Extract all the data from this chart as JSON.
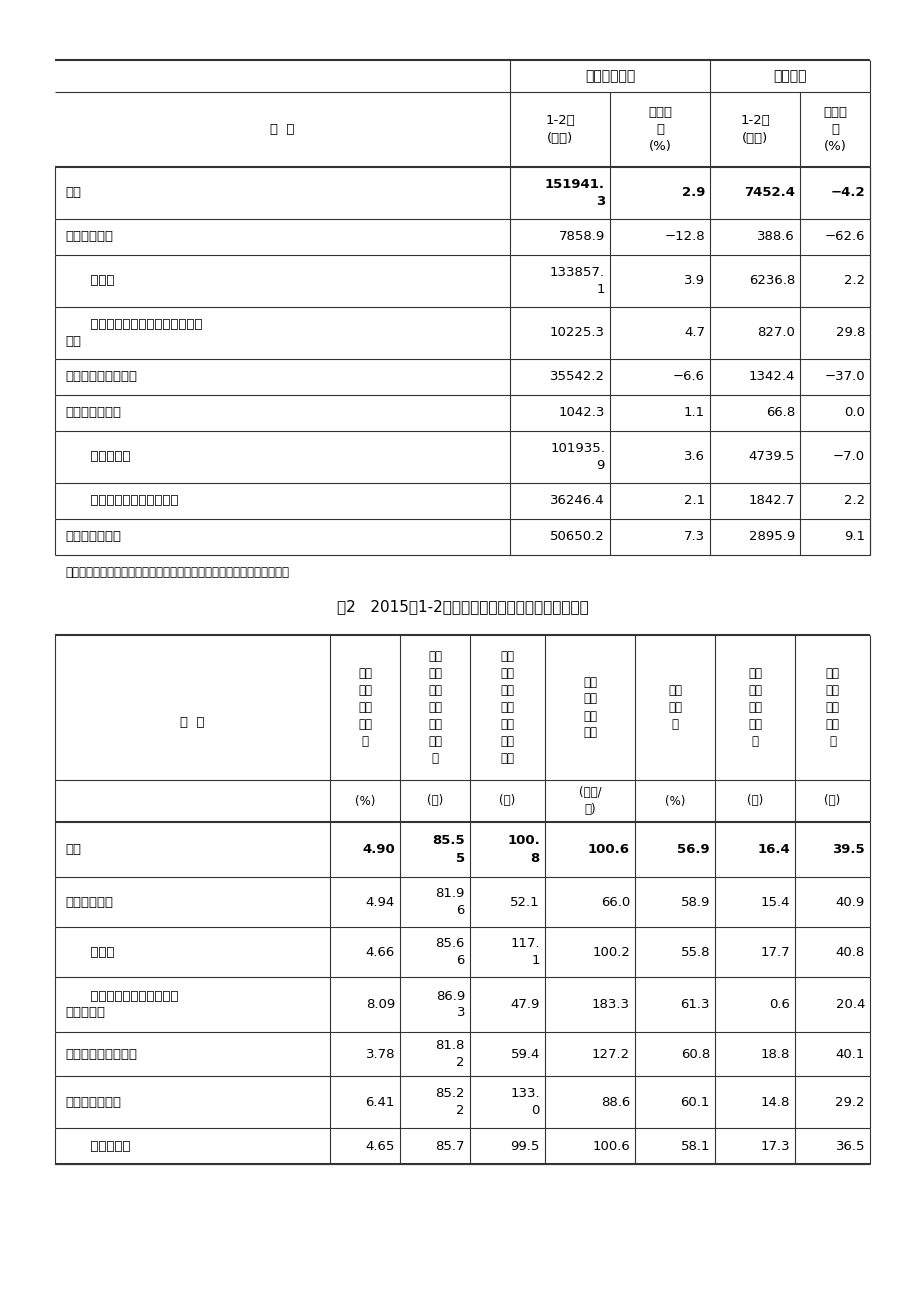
{
  "page_bg": "#ffffff",
  "table1": {
    "col_group1": "主营业务收入",
    "col_group2": "利润总额",
    "sub_headers": [
      "分  组",
      "1-2月\n(亿元)",
      "同比增\n长\n(%)",
      "1-2月\n(亿元)",
      "同比增\n长\n(%)"
    ],
    "rows": [
      {
        "label": "总计",
        "bold": true,
        "values": [
          "151941.\n3",
          "2.9",
          "7452.4",
          "−4.2"
        ],
        "bold_values": true
      },
      {
        "label": "其中：采矿业",
        "bold": false,
        "values": [
          "7858.9",
          "−12.8",
          "388.6",
          "−62.6"
        ],
        "bold_values": false
      },
      {
        "label": "      制造业",
        "bold": false,
        "values": [
          "133857.\n1",
          "3.9",
          "6236.8",
          "2.2"
        ],
        "bold_values": false
      },
      {
        "label": "      电力、热力、燃气及水生产和供\n应业",
        "bold": false,
        "values": [
          "10225.3",
          "4.7",
          "827.0",
          "29.8"
        ],
        "bold_values": false
      },
      {
        "label": "其中：国有控股企业",
        "bold": false,
        "values": [
          "35542.2",
          "−6.6",
          "1342.4",
          "−37.0"
        ],
        "bold_values": false
      },
      {
        "label": "其中：集体企业",
        "bold": false,
        "values": [
          "1042.3",
          "1.1",
          "66.8",
          "0.0"
        ],
        "bold_values": false
      },
      {
        "label": "      股份制企业",
        "bold": false,
        "values": [
          "101935.\n9",
          "3.6",
          "4739.5",
          "−7.0"
        ],
        "bold_values": false
      },
      {
        "label": "      外商及港澳台商投资企业",
        "bold": false,
        "values": [
          "36246.4",
          "2.1",
          "1842.7",
          "2.2"
        ],
        "bold_values": false
      },
      {
        "label": "其中：私营企业",
        "bold": false,
        "values": [
          "50650.2",
          "7.3",
          "2895.9",
          "9.1"
        ],
        "bold_values": false
      }
    ],
    "note": "注：经济类型分组之间存在交叉，故各经济类型企业数据之和大于总计。"
  },
  "table2": {
    "title": "表2   2015年1-2月份规模以上工业企业经济效益指标",
    "col_headers": [
      "主营\n业务\n收入\n利润\n率",
      "每百\n元主\n营业\n务收\n入中\n的成\n本",
      "每百\n元资\n产实\n现的\n主营\n业务\n收入",
      "人均\n主营\n业务\n收入",
      "资产\n负债\n率",
      "产成\n品存\n货周\n转天\n数",
      "应收\n账款\n平均\n回收\n期"
    ],
    "unit_headers": [
      "(%)",
      "(元)",
      "(元)",
      "(万元/\n人)",
      "(%)",
      "(天)",
      "(天)"
    ],
    "rows": [
      {
        "label": "总计",
        "bold": true,
        "values": [
          "4.90",
          "85.5\n5",
          "100.\n8",
          "100.6",
          "56.9",
          "16.4",
          "39.5"
        ],
        "bold_values": true
      },
      {
        "label": "其中：采矿业",
        "bold": false,
        "values": [
          "4.94",
          "81.9\n6",
          "52.1",
          "66.0",
          "58.9",
          "15.4",
          "40.9"
        ],
        "bold_values": false
      },
      {
        "label": "      制造业",
        "bold": false,
        "values": [
          "4.66",
          "85.6\n6",
          "117.\n1",
          "100.2",
          "55.8",
          "17.7",
          "40.8"
        ],
        "bold_values": false
      },
      {
        "label": "      电力、热力、燃气及水生\n产和供应业",
        "bold": false,
        "values": [
          "8.09",
          "86.9\n3",
          "47.9",
          "183.3",
          "61.3",
          "0.6",
          "20.4"
        ],
        "bold_values": false
      },
      {
        "label": "其中：国有控股企业",
        "bold": false,
        "values": [
          "3.78",
          "81.8\n2",
          "59.4",
          "127.2",
          "60.8",
          "18.8",
          "40.1"
        ],
        "bold_values": false
      },
      {
        "label": "其中：集体企业",
        "bold": false,
        "values": [
          "6.41",
          "85.2\n2",
          "133.\n0",
          "88.6",
          "60.1",
          "14.8",
          "29.2"
        ],
        "bold_values": false
      },
      {
        "label": "      股份制企业",
        "bold": false,
        "values": [
          "4.65",
          "85.7",
          "99.5",
          "100.6",
          "58.1",
          "17.3",
          "36.5"
        ],
        "bold_values": false
      }
    ]
  }
}
